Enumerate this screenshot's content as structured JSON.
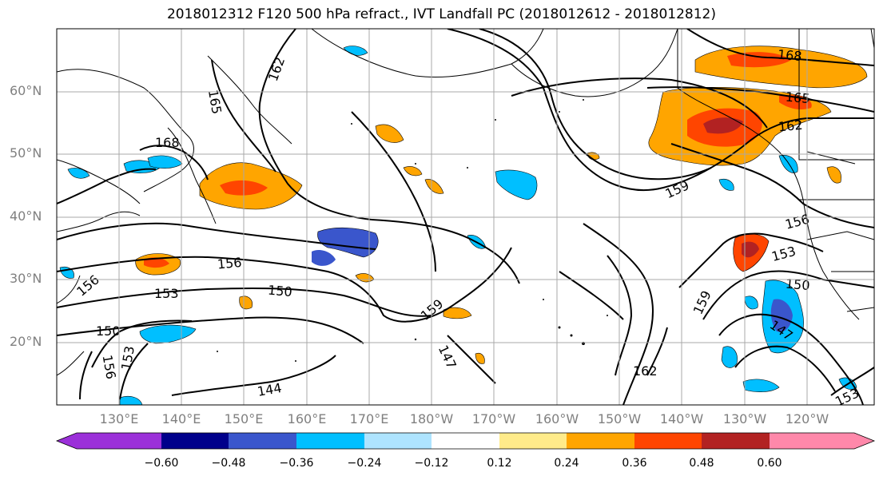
{
  "title": "2018012312 F120 500 hPa refract., IVT Landfall PC (2018012612 - 2018012812)",
  "lat_labels": [
    "60°N",
    "50°N",
    "40°N",
    "30°N",
    "20°N"
  ],
  "lon_labels": [
    "130°E",
    "140°E",
    "150°E",
    "160°E",
    "170°E",
    "180°W",
    "170°W",
    "160°W",
    "150°W",
    "140°W",
    "130°W",
    "120°W"
  ],
  "contour_labels": [
    "168",
    "165",
    "162",
    "159",
    "156",
    "153",
    "150",
    "147",
    "144"
  ],
  "colorbar": {
    "colors": [
      "#9b30d9",
      "#00008b",
      "#3a56cc",
      "#00bfff",
      "#aee4ff",
      "#ffffff",
      "#ffeb8a",
      "#ffa500",
      "#ff4500",
      "#b22222",
      "#ff88aa"
    ],
    "labels": [
      "−0.60",
      "−0.48",
      "−0.36",
      "−0.24",
      "−0.12",
      "0.12",
      "0.24",
      "0.36",
      "0.48",
      "0.60"
    ]
  }
}
